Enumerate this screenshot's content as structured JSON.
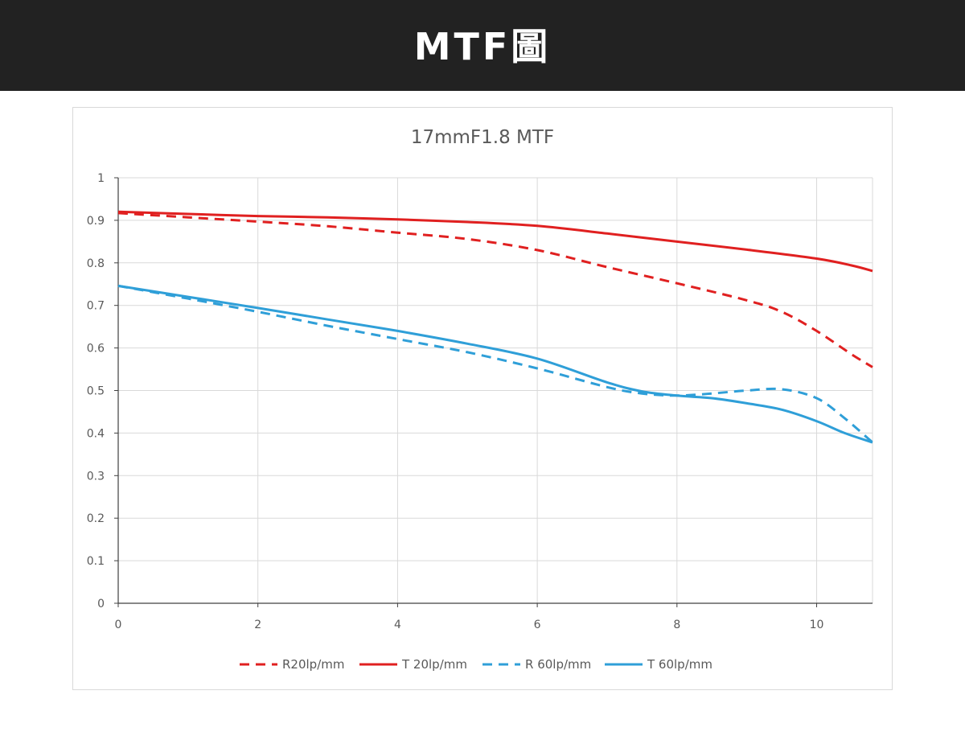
{
  "header": {
    "title": "MTF圖"
  },
  "colors": {
    "header_bg": "#222222",
    "red": "#e02020",
    "blue": "#2f9fd8",
    "grid": "#d9d9d9",
    "text": "#595959"
  },
  "chart_data": {
    "type": "line",
    "title": "17mmF1.8  MTF",
    "xlabel": "",
    "ylabel": "",
    "xlim": [
      0,
      10.8
    ],
    "ylim": [
      0,
      1
    ],
    "x_ticks": [
      "0",
      "2",
      "4",
      "6",
      "8",
      "10"
    ],
    "y_ticks": [
      "0",
      "0.1",
      "0.2",
      "0.3",
      "0.4",
      "0.5",
      "0.6",
      "0.7",
      "0.8",
      "0.9",
      "1"
    ],
    "grid": true,
    "legend_position": "bottom",
    "series": [
      {
        "name": "R20lp/mm",
        "color": "#e02020",
        "dash": true,
        "points": [
          [
            0,
            0.917
          ],
          [
            1,
            0.907
          ],
          [
            2,
            0.897
          ],
          [
            3,
            0.886
          ],
          [
            4,
            0.871
          ],
          [
            5,
            0.856
          ],
          [
            6,
            0.83
          ],
          [
            7,
            0.79
          ],
          [
            8,
            0.752
          ],
          [
            9,
            0.712
          ],
          [
            9.5,
            0.685
          ],
          [
            10,
            0.64
          ],
          [
            10.5,
            0.585
          ],
          [
            10.8,
            0.555
          ]
        ]
      },
      {
        "name": "T 20lp/mm",
        "color": "#e02020",
        "dash": false,
        "points": [
          [
            0,
            0.92
          ],
          [
            1,
            0.915
          ],
          [
            2,
            0.91
          ],
          [
            3,
            0.907
          ],
          [
            4,
            0.902
          ],
          [
            5,
            0.896
          ],
          [
            6,
            0.887
          ],
          [
            7,
            0.869
          ],
          [
            8,
            0.85
          ],
          [
            9,
            0.831
          ],
          [
            10,
            0.81
          ],
          [
            10.5,
            0.794
          ],
          [
            10.8,
            0.781
          ]
        ]
      },
      {
        "name": "R 60lp/mm",
        "color": "#2f9fd8",
        "dash": true,
        "points": [
          [
            0,
            0.746
          ],
          [
            1,
            0.716
          ],
          [
            2,
            0.685
          ],
          [
            3,
            0.652
          ],
          [
            4,
            0.621
          ],
          [
            5,
            0.59
          ],
          [
            6,
            0.552
          ],
          [
            7,
            0.508
          ],
          [
            7.5,
            0.493
          ],
          [
            8,
            0.488
          ],
          [
            8.5,
            0.493
          ],
          [
            9,
            0.5
          ],
          [
            9.5,
            0.503
          ],
          [
            10,
            0.482
          ],
          [
            10.4,
            0.435
          ],
          [
            10.8,
            0.378
          ]
        ]
      },
      {
        "name": "T 60lp/mm",
        "color": "#2f9fd8",
        "dash": false,
        "points": [
          [
            0,
            0.746
          ],
          [
            1,
            0.72
          ],
          [
            2,
            0.694
          ],
          [
            3,
            0.667
          ],
          [
            4,
            0.64
          ],
          [
            5,
            0.61
          ],
          [
            6,
            0.575
          ],
          [
            7,
            0.519
          ],
          [
            7.5,
            0.498
          ],
          [
            8,
            0.488
          ],
          [
            8.5,
            0.482
          ],
          [
            9,
            0.47
          ],
          [
            9.5,
            0.455
          ],
          [
            10,
            0.428
          ],
          [
            10.4,
            0.4
          ],
          [
            10.8,
            0.378
          ]
        ]
      }
    ]
  }
}
